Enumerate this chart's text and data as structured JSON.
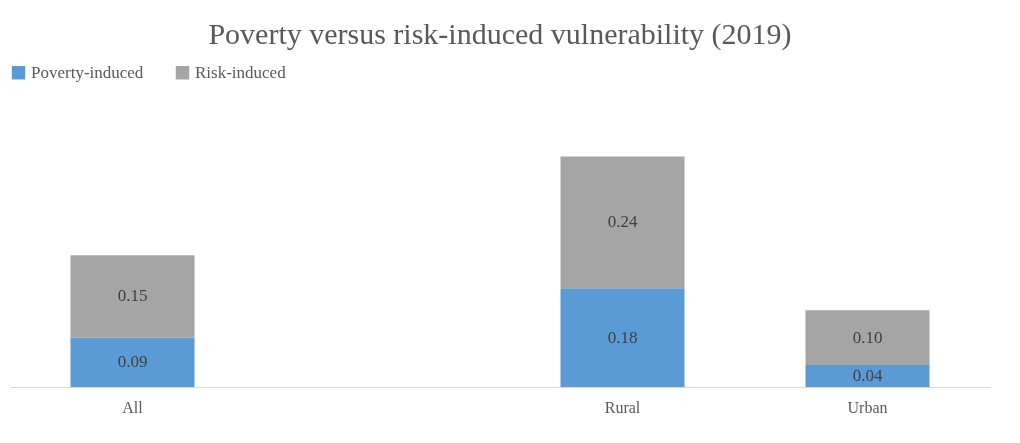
{
  "chart_data": {
    "type": "bar",
    "title": "Poverty versus risk-induced vulnerability (2019)",
    "categories": [
      "All",
      null,
      "Rural",
      "Urban"
    ],
    "stacked": true,
    "legend": "top",
    "grid": false,
    "series": [
      {
        "name": "Poverty-induced",
        "color": "#5b9bd5",
        "values": [
          0.09,
          null,
          0.18,
          0.04
        ],
        "value_labels": [
          "0.09",
          null,
          "0.18",
          "0.04"
        ]
      },
      {
        "name": "Risk-induced",
        "color": "#a5a5a5",
        "values": [
          0.15,
          null,
          0.24,
          0.1
        ],
        "value_labels": [
          "0.15",
          null,
          "0.24",
          "0.10"
        ]
      }
    ]
  }
}
